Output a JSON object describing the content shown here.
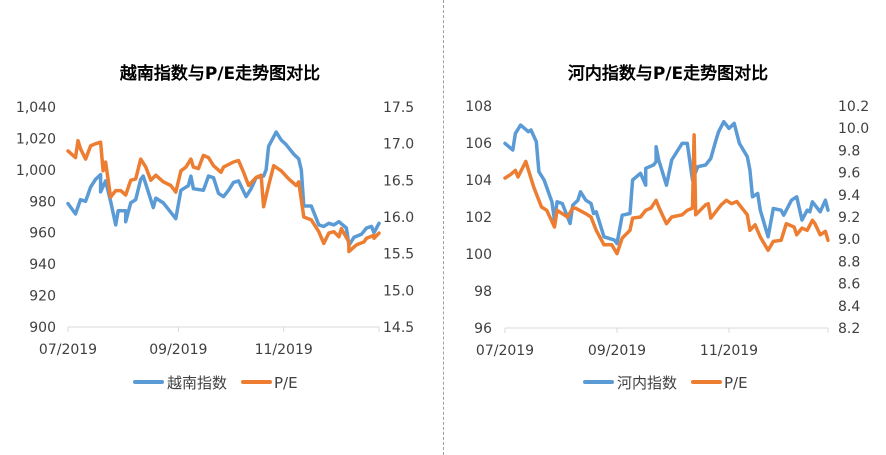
{
  "colors": {
    "index": "#5B9BD5",
    "pe": "#ED7D31",
    "axis": "#d9d9d9",
    "text": "#404040"
  },
  "chart_data": [
    {
      "type": "line",
      "title": "越南指数与P/E走势图对比",
      "x_ticks": [
        {
          "x": 0,
          "label": "07/2019"
        },
        {
          "x": 44,
          "label": "09/2019"
        },
        {
          "x": 86,
          "label": "11/2019"
        }
      ],
      "x_range": [
        0,
        124
      ],
      "y_left": {
        "range": [
          900,
          1040
        ],
        "ticks": [
          "900",
          "920",
          "940",
          "960",
          "980",
          "1,000",
          "1,020",
          "1,040"
        ],
        "tick_values": [
          900,
          920,
          940,
          960,
          980,
          1000,
          1020,
          1040
        ]
      },
      "y_right": {
        "range": [
          14.5,
          17.5
        ],
        "ticks": [
          "14.5",
          "15.0",
          "15.5",
          "16.0",
          "16.5",
          "17.0",
          "17.5"
        ],
        "tick_values": [
          14.5,
          15,
          15.5,
          16,
          16.5,
          17,
          17.5
        ]
      },
      "legend": [
        "越南指数",
        "P/E"
      ],
      "legend_position": "bottom",
      "series": [
        {
          "name": "越南指数",
          "axis": "left",
          "x": [
            0,
            3,
            5,
            7,
            9,
            11,
            13,
            13,
            15,
            17,
            19,
            20,
            23,
            23,
            25,
            27,
            29,
            30,
            32,
            34,
            35,
            38,
            41,
            43,
            45,
            48,
            49,
            50,
            54,
            56,
            58,
            60,
            62,
            64,
            66,
            68,
            71,
            73,
            75,
            78,
            79,
            80,
            83,
            85,
            87,
            90,
            92,
            93,
            94,
            97,
            100,
            102,
            104,
            106,
            108,
            111,
            112,
            114,
            117,
            119,
            121,
            122,
            124
          ],
          "y": [
            978.5,
            972,
            981,
            980,
            989,
            994,
            997,
            986,
            993,
            980,
            965,
            974,
            974,
            967,
            979,
            981,
            994,
            996,
            986,
            976,
            982,
            979,
            973,
            969,
            987,
            990,
            996,
            988,
            987,
            996,
            995,
            985,
            983,
            987,
            992,
            993,
            983,
            988,
            995,
            996,
            1000,
            1015,
            1024,
            1019,
            1016,
            1010,
            1007,
            1000,
            977,
            977,
            965,
            964,
            966,
            965,
            967,
            963,
            952,
            957,
            959,
            963,
            964,
            960,
            966
          ]
        },
        {
          "name": "P/E",
          "axis": "right",
          "x": [
            0,
            3,
            4,
            5,
            7,
            9,
            11,
            13,
            14,
            15,
            17,
            19,
            21,
            23,
            25,
            27,
            29,
            31,
            33,
            35,
            38,
            41,
            43,
            45,
            47,
            49,
            50,
            52,
            54,
            56,
            58,
            61,
            62,
            66,
            68,
            70,
            72,
            75,
            77,
            78,
            80,
            82,
            85,
            88,
            91,
            92,
            94,
            97,
            100,
            102,
            104,
            106,
            108,
            109,
            112,
            112,
            115,
            118,
            119,
            122,
            122,
            124
          ],
          "y": [
            16.9,
            16.81,
            17.04,
            16.93,
            16.79,
            16.97,
            17.0,
            17.02,
            16.63,
            16.75,
            16.27,
            16.36,
            16.36,
            16.3,
            16.5,
            16.52,
            16.79,
            16.68,
            16.5,
            16.57,
            16.48,
            16.43,
            16.34,
            16.63,
            16.68,
            16.79,
            16.68,
            16.66,
            16.84,
            16.81,
            16.7,
            16.61,
            16.68,
            16.75,
            16.77,
            16.61,
            16.43,
            16.54,
            16.57,
            16.14,
            16.43,
            16.7,
            16.63,
            16.52,
            16.43,
            16.48,
            16.0,
            15.96,
            15.8,
            15.64,
            15.78,
            15.8,
            15.73,
            15.84,
            15.66,
            15.53,
            15.62,
            15.66,
            15.71,
            15.75,
            15.71,
            15.78
          ]
        }
      ]
    },
    {
      "type": "line",
      "title": "河内指数与P/E走势图对比",
      "x_ticks": [
        {
          "x": 0,
          "label": "07/2019"
        },
        {
          "x": 43,
          "label": "09/2019"
        },
        {
          "x": 86,
          "label": "11/2019"
        }
      ],
      "x_range": [
        0,
        124
      ],
      "y_left": {
        "range": [
          96,
          108
        ],
        "ticks": [
          "96",
          "98",
          "100",
          "102",
          "104",
          "106",
          "108"
        ],
        "tick_values": [
          96,
          98,
          100,
          102,
          104,
          106,
          108
        ]
      },
      "y_right": {
        "range": [
          8.2,
          10.2
        ],
        "ticks": [
          "8.2",
          "8.4",
          "8.6",
          "8.8",
          "9.0",
          "9.2",
          "9.4",
          "9.6",
          "9.8",
          "10.0",
          "10.2"
        ],
        "tick_values": [
          8.2,
          8.4,
          8.6,
          8.8,
          9.0,
          9.2,
          9.4,
          9.6,
          9.8,
          10.0,
          10.2
        ]
      },
      "legend": [
        "河内指数",
        "P/E"
      ],
      "legend_position": "bottom",
      "series": [
        {
          "name": "河内指数",
          "axis": "left",
          "x": [
            0,
            3,
            4,
            6,
            9,
            10,
            12,
            13,
            15,
            18,
            19,
            20,
            22,
            25,
            26,
            28,
            29,
            31,
            33,
            34,
            35,
            38,
            42,
            43,
            45,
            48,
            49,
            52,
            54,
            54,
            57,
            58,
            58,
            59,
            62,
            64,
            68,
            70,
            72,
            74,
            77,
            79,
            81,
            82,
            84,
            86,
            88,
            90,
            93,
            94,
            95,
            97,
            98,
            101,
            103,
            106,
            107,
            110,
            112,
            114,
            116,
            117,
            118,
            121,
            123,
            124
          ],
          "y": [
            105.98,
            105.62,
            106.52,
            106.97,
            106.61,
            106.7,
            106.07,
            104.45,
            104.0,
            102.82,
            101.83,
            102.82,
            102.73,
            101.65,
            102.64,
            102.91,
            103.36,
            102.91,
            102.73,
            102.19,
            102.28,
            100.93,
            100.75,
            100.57,
            102.1,
            102.19,
            104.0,
            104.36,
            103.72,
            104.63,
            104.81,
            104.99,
            105.8,
            105.08,
            103.72,
            105.08,
            105.98,
            105.98,
            104.0,
            104.72,
            104.81,
            105.17,
            106.16,
            106.61,
            107.15,
            106.79,
            107.06,
            105.98,
            105.26,
            104.54,
            103.09,
            103.27,
            102.37,
            100.93,
            102.46,
            102.37,
            102.1,
            102.91,
            103.09,
            101.83,
            102.37,
            102.28,
            102.82,
            102.28,
            102.91,
            102.37
          ]
        },
        {
          "name": "P/E",
          "axis": "right",
          "x": [
            0,
            2,
            4,
            5,
            8,
            11,
            14,
            16,
            19,
            20,
            24,
            26,
            27,
            31,
            33,
            35,
            38,
            41,
            43,
            45,
            48,
            49,
            52,
            54,
            56,
            58,
            59,
            62,
            64,
            68,
            70,
            72,
            72.6,
            73.2,
            77,
            78,
            79,
            83,
            85,
            87,
            89,
            93,
            94,
            96,
            98,
            101,
            103,
            106,
            108,
            111,
            112,
            114,
            116,
            118,
            119,
            121,
            123,
            124
          ],
          "y": [
            9.55,
            9.58,
            9.62,
            9.56,
            9.7,
            9.47,
            9.29,
            9.26,
            9.11,
            9.26,
            9.2,
            9.28,
            9.28,
            9.23,
            9.2,
            9.08,
            8.95,
            8.95,
            8.87,
            9.01,
            9.08,
            9.19,
            9.2,
            9.26,
            9.28,
            9.35,
            9.29,
            9.14,
            9.2,
            9.22,
            9.26,
            9.28,
            9.94,
            9.22,
            9.31,
            9.32,
            9.19,
            9.31,
            9.35,
            9.32,
            9.34,
            9.22,
            9.08,
            9.13,
            9.02,
            8.9,
            8.98,
            8.99,
            9.14,
            9.11,
            9.04,
            9.1,
            9.08,
            9.17,
            9.14,
            9.04,
            9.07,
            8.99
          ]
        }
      ]
    }
  ]
}
